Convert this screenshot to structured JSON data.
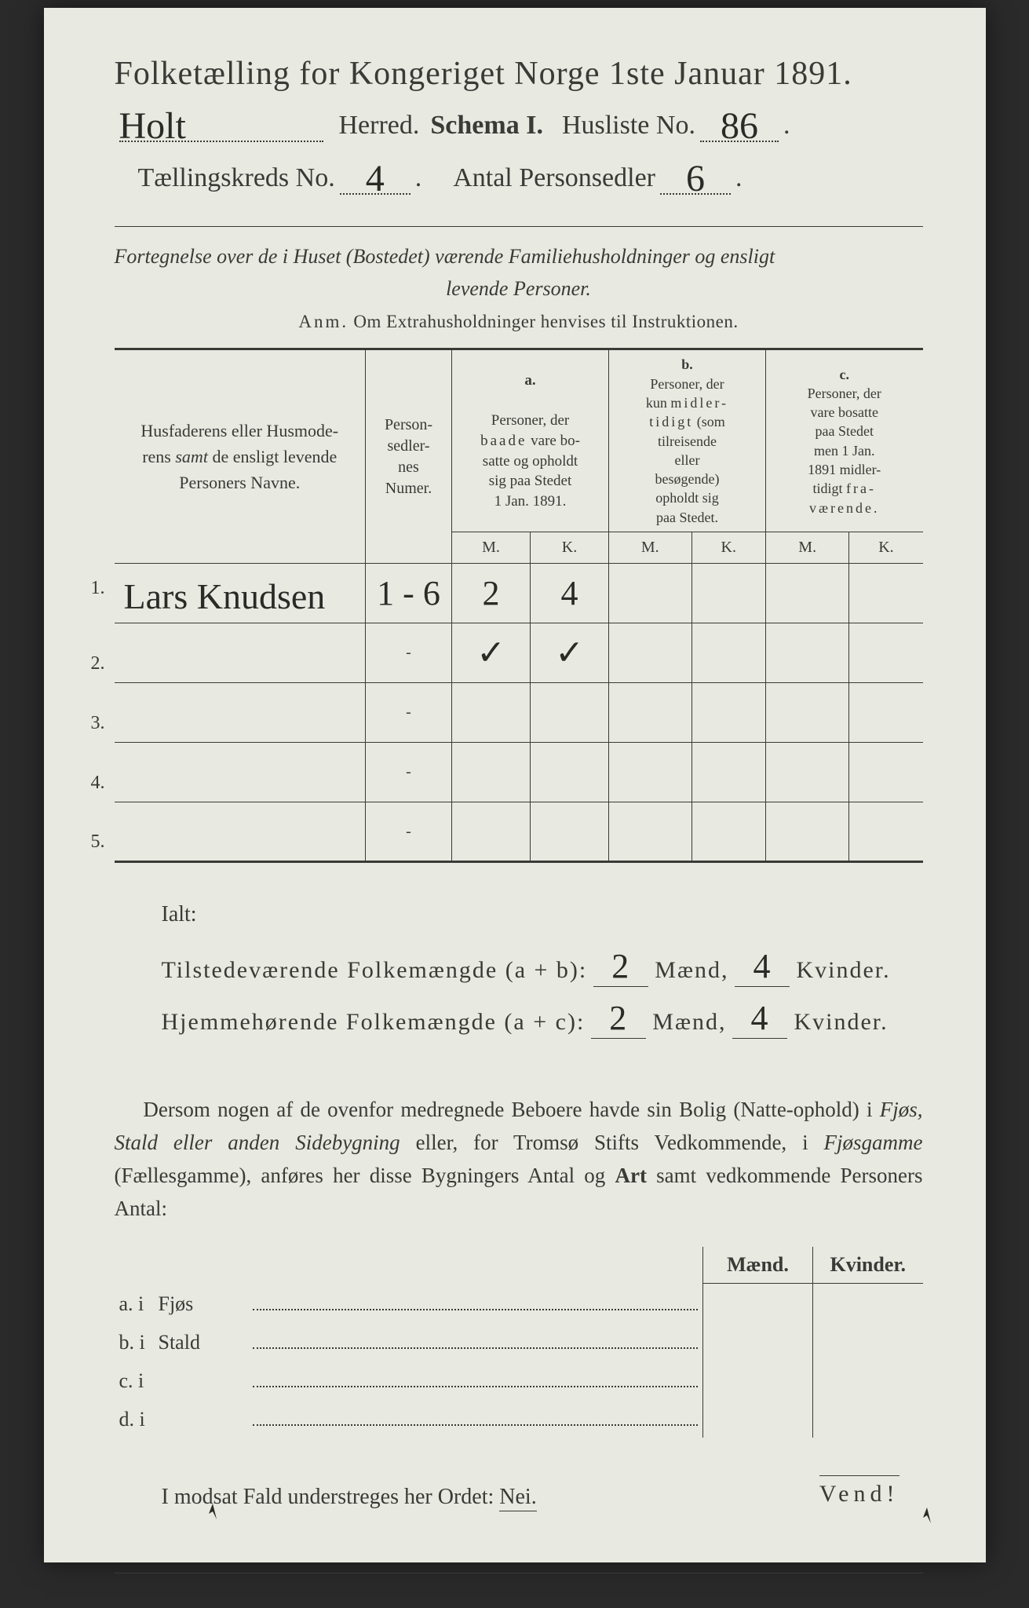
{
  "colors": {
    "paper": "#e8e9e1",
    "ink": "#3a3a36",
    "background": "#2a2a2a",
    "handwriting": "#2a2a26"
  },
  "header": {
    "title": "Folketælling for Kongeriget Norge 1ste Januar 1891.",
    "herred_value": "Holt",
    "herred_label": "Herred.",
    "schema_label": "Schema I.",
    "husliste_label": "Husliste No.",
    "husliste_value": "86",
    "kreds_label": "Tællingskreds No.",
    "kreds_value": "4",
    "personsedler_label": "Antal Personsedler",
    "personsedler_value": "6"
  },
  "subtitle": {
    "line1": "Fortegnelse over de i Huset (Bostedet) værende Familiehusholdninger og ensligt",
    "line2": "levende Personer.",
    "anm": "Anm.  Om Extrahusholdninger henvises til Instruktionen."
  },
  "table": {
    "col_name": "Husfaderens eller Husmoderens samt de ensligt levende Personers Navne.",
    "col_numer": "Person-sedler-nes Numer.",
    "col_a_label": "a.",
    "col_a": "Personer, der baade vare bosatte og opholdt sig paa Stedet 1 Jan. 1891.",
    "col_b_label": "b.",
    "col_b": "Personer, der kun midlertidigt (som tilreisende eller besøgende) opholdt sig paa Stedet.",
    "col_c_label": "c.",
    "col_c": "Personer, der vare bosatte paa Stedet men 1 Jan. 1891 midlertidigt fraværende.",
    "mk_m": "M.",
    "mk_k": "K.",
    "rows": [
      {
        "n": "1.",
        "name": "Lars Knudsen",
        "numer": "1 - 6",
        "a_m": "2",
        "a_k": "4",
        "b_m": "",
        "b_k": "",
        "c_m": "",
        "c_k": ""
      },
      {
        "n": "2.",
        "name": "",
        "numer": "-",
        "a_m": "✓",
        "a_k": "✓",
        "b_m": "",
        "b_k": "",
        "c_m": "",
        "c_k": ""
      },
      {
        "n": "3.",
        "name": "",
        "numer": "-",
        "a_m": "",
        "a_k": "",
        "b_m": "",
        "b_k": "",
        "c_m": "",
        "c_k": ""
      },
      {
        "n": "4.",
        "name": "",
        "numer": "-",
        "a_m": "",
        "a_k": "",
        "b_m": "",
        "b_k": "",
        "c_m": "",
        "c_k": ""
      },
      {
        "n": "5.",
        "name": "",
        "numer": "-",
        "a_m": "",
        "a_k": "",
        "b_m": "",
        "b_k": "",
        "c_m": "",
        "c_k": ""
      }
    ]
  },
  "totals": {
    "ialt": "Ialt:",
    "line1_label": "Tilstedeværende Folkemængde (a + b):",
    "line2_label": "Hjemmehørende Folkemængde (a + c):",
    "maend": "Mænd,",
    "kvinder": "Kvinder.",
    "t_m": "2",
    "t_k": "4",
    "h_m": "2",
    "h_k": "4"
  },
  "paragraph": {
    "text": "Dersom nogen af de ovenfor medregnede Beboere havde sin Bolig (Natte-ophold) i Fjøs, Stald eller anden Sidebygning eller, for Tromsø Stifts Vedkommende, i Fjøsgamme (Fællesgamme), anføres her disse Bygningers Antal og Art samt vedkommende Personers Antal:"
  },
  "side_table": {
    "head_m": "Mænd.",
    "head_k": "Kvinder.",
    "rows": [
      {
        "label": "a.  i",
        "type": "Fjøs"
      },
      {
        "label": "b.  i",
        "type": "Stald"
      },
      {
        "label": "c.  i",
        "type": ""
      },
      {
        "label": "d.  i",
        "type": ""
      }
    ]
  },
  "footer": {
    "modsat": "I modsat Fald understreges her Ordet:",
    "nei": "Nei.",
    "vend": "Vend!"
  }
}
